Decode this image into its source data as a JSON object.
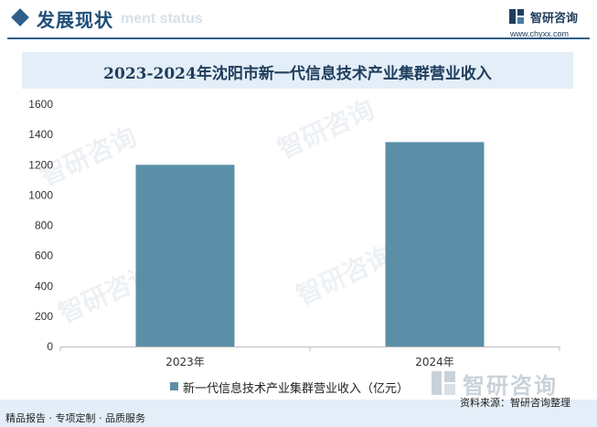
{
  "header": {
    "title": "发展现状",
    "subtitle_partial": "ment status"
  },
  "brand": {
    "name": "智研咨询",
    "url": "www.chyxx.com"
  },
  "chart_data": {
    "type": "bar",
    "title": "2023-2024年沈阳市新一代信息技术产业集群营业收入",
    "categories": [
      "2023年",
      "2024年"
    ],
    "series": [
      {
        "name": "新一代信息技术产业集群营业收入（亿元）",
        "values": [
          1200,
          1350
        ]
      }
    ],
    "ylim": [
      0,
      1600
    ],
    "yticks": [
      "0",
      "200",
      "400",
      "600",
      "800",
      "1000",
      "1200",
      "1400",
      "1600"
    ],
    "grid": false,
    "legend": "bottom",
    "colors": {
      "bar": "#5b8fa8"
    }
  },
  "watermark": {
    "text": "智研咨询"
  },
  "footer": {
    "left": "精品报告 · 专项定制 · 品质服务",
    "right": "资料来源：智研咨询整理"
  }
}
